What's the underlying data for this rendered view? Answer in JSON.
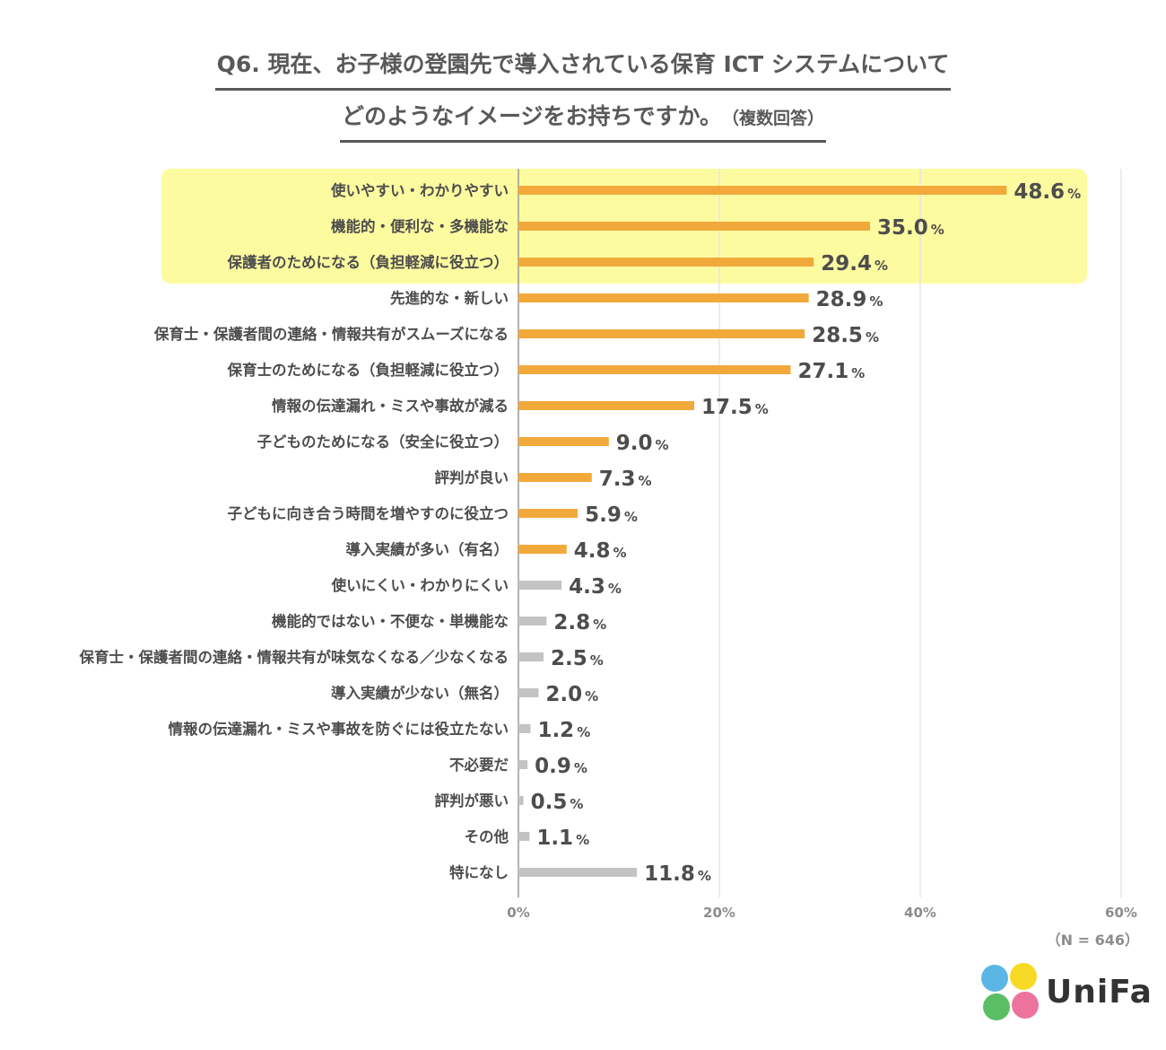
{
  "title": {
    "line1": "Q6. 現在、お子様の登園先で導入されている保育 ICT システムについて",
    "line2": "どのようなイメージをお持ちですか。",
    "line2_note": "（複数回答）"
  },
  "chart_data": {
    "type": "bar",
    "orientation": "horizontal",
    "unit": "%",
    "xlim": [
      0,
      60
    ],
    "xticks": [
      "0%",
      "20%",
      "40%",
      "60%"
    ],
    "highlighted_count": 3,
    "categories": [
      "使いやすい・わかりやすい",
      "機能的・便利な・多機能な",
      "保護者のためになる（負担軽減に役立つ）",
      "先進的な・新しい",
      "保育士・保護者間の連絡・情報共有がスムーズになる",
      "保育士のためになる（負担軽減に役立つ）",
      "情報の伝達漏れ・ミスや事故が減る",
      "子どものためになる（安全に役立つ）",
      "評判が良い",
      "子どもに向き合う時間を増やすのに役立つ",
      "導入実績が多い（有名）",
      "使いにくい・わかりにくい",
      "機能的ではない・不便な・単機能な",
      "保育士・保護者間の連絡・情報共有が味気なくなる／少なくなる",
      "導入実績が少ない（無名）",
      "情報の伝達漏れ・ミスや事故を防ぐには役立たない",
      "不必要だ",
      "評判が悪い",
      "その他",
      "特になし"
    ],
    "values": [
      48.6,
      35.0,
      29.4,
      28.9,
      28.5,
      27.1,
      17.5,
      9.0,
      7.3,
      5.9,
      4.8,
      4.3,
      2.8,
      2.5,
      2.0,
      1.2,
      0.9,
      0.5,
      1.1,
      11.8
    ],
    "labels": [
      "48.6",
      "35.0",
      "29.4",
      "28.9",
      "28.5",
      "27.1",
      "17.5",
      "9.0",
      "7.3",
      "5.9",
      "4.8",
      "4.3",
      "2.8",
      "2.5",
      "2.0",
      "1.2",
      "0.9",
      "0.5",
      "1.1",
      "11.8"
    ],
    "group": [
      "positive",
      "positive",
      "positive",
      "positive",
      "positive",
      "positive",
      "positive",
      "positive",
      "positive",
      "positive",
      "positive",
      "negative",
      "negative",
      "negative",
      "negative",
      "negative",
      "negative",
      "negative",
      "other",
      "other"
    ],
    "percent_sign": "%",
    "sample_note": "（N = 646）"
  },
  "colors": {
    "positive": "#f2a93b",
    "negative": "#c3c3c3",
    "other": "#c3c3c3",
    "highlight": "#fdfba0",
    "grid": "#e6e6e6",
    "axis": "#999999"
  },
  "logo": {
    "text": "UniFa",
    "dot_colors": [
      "#3fa9e0",
      "#f5d400",
      "#3db34a",
      "#ea5a8b"
    ]
  }
}
